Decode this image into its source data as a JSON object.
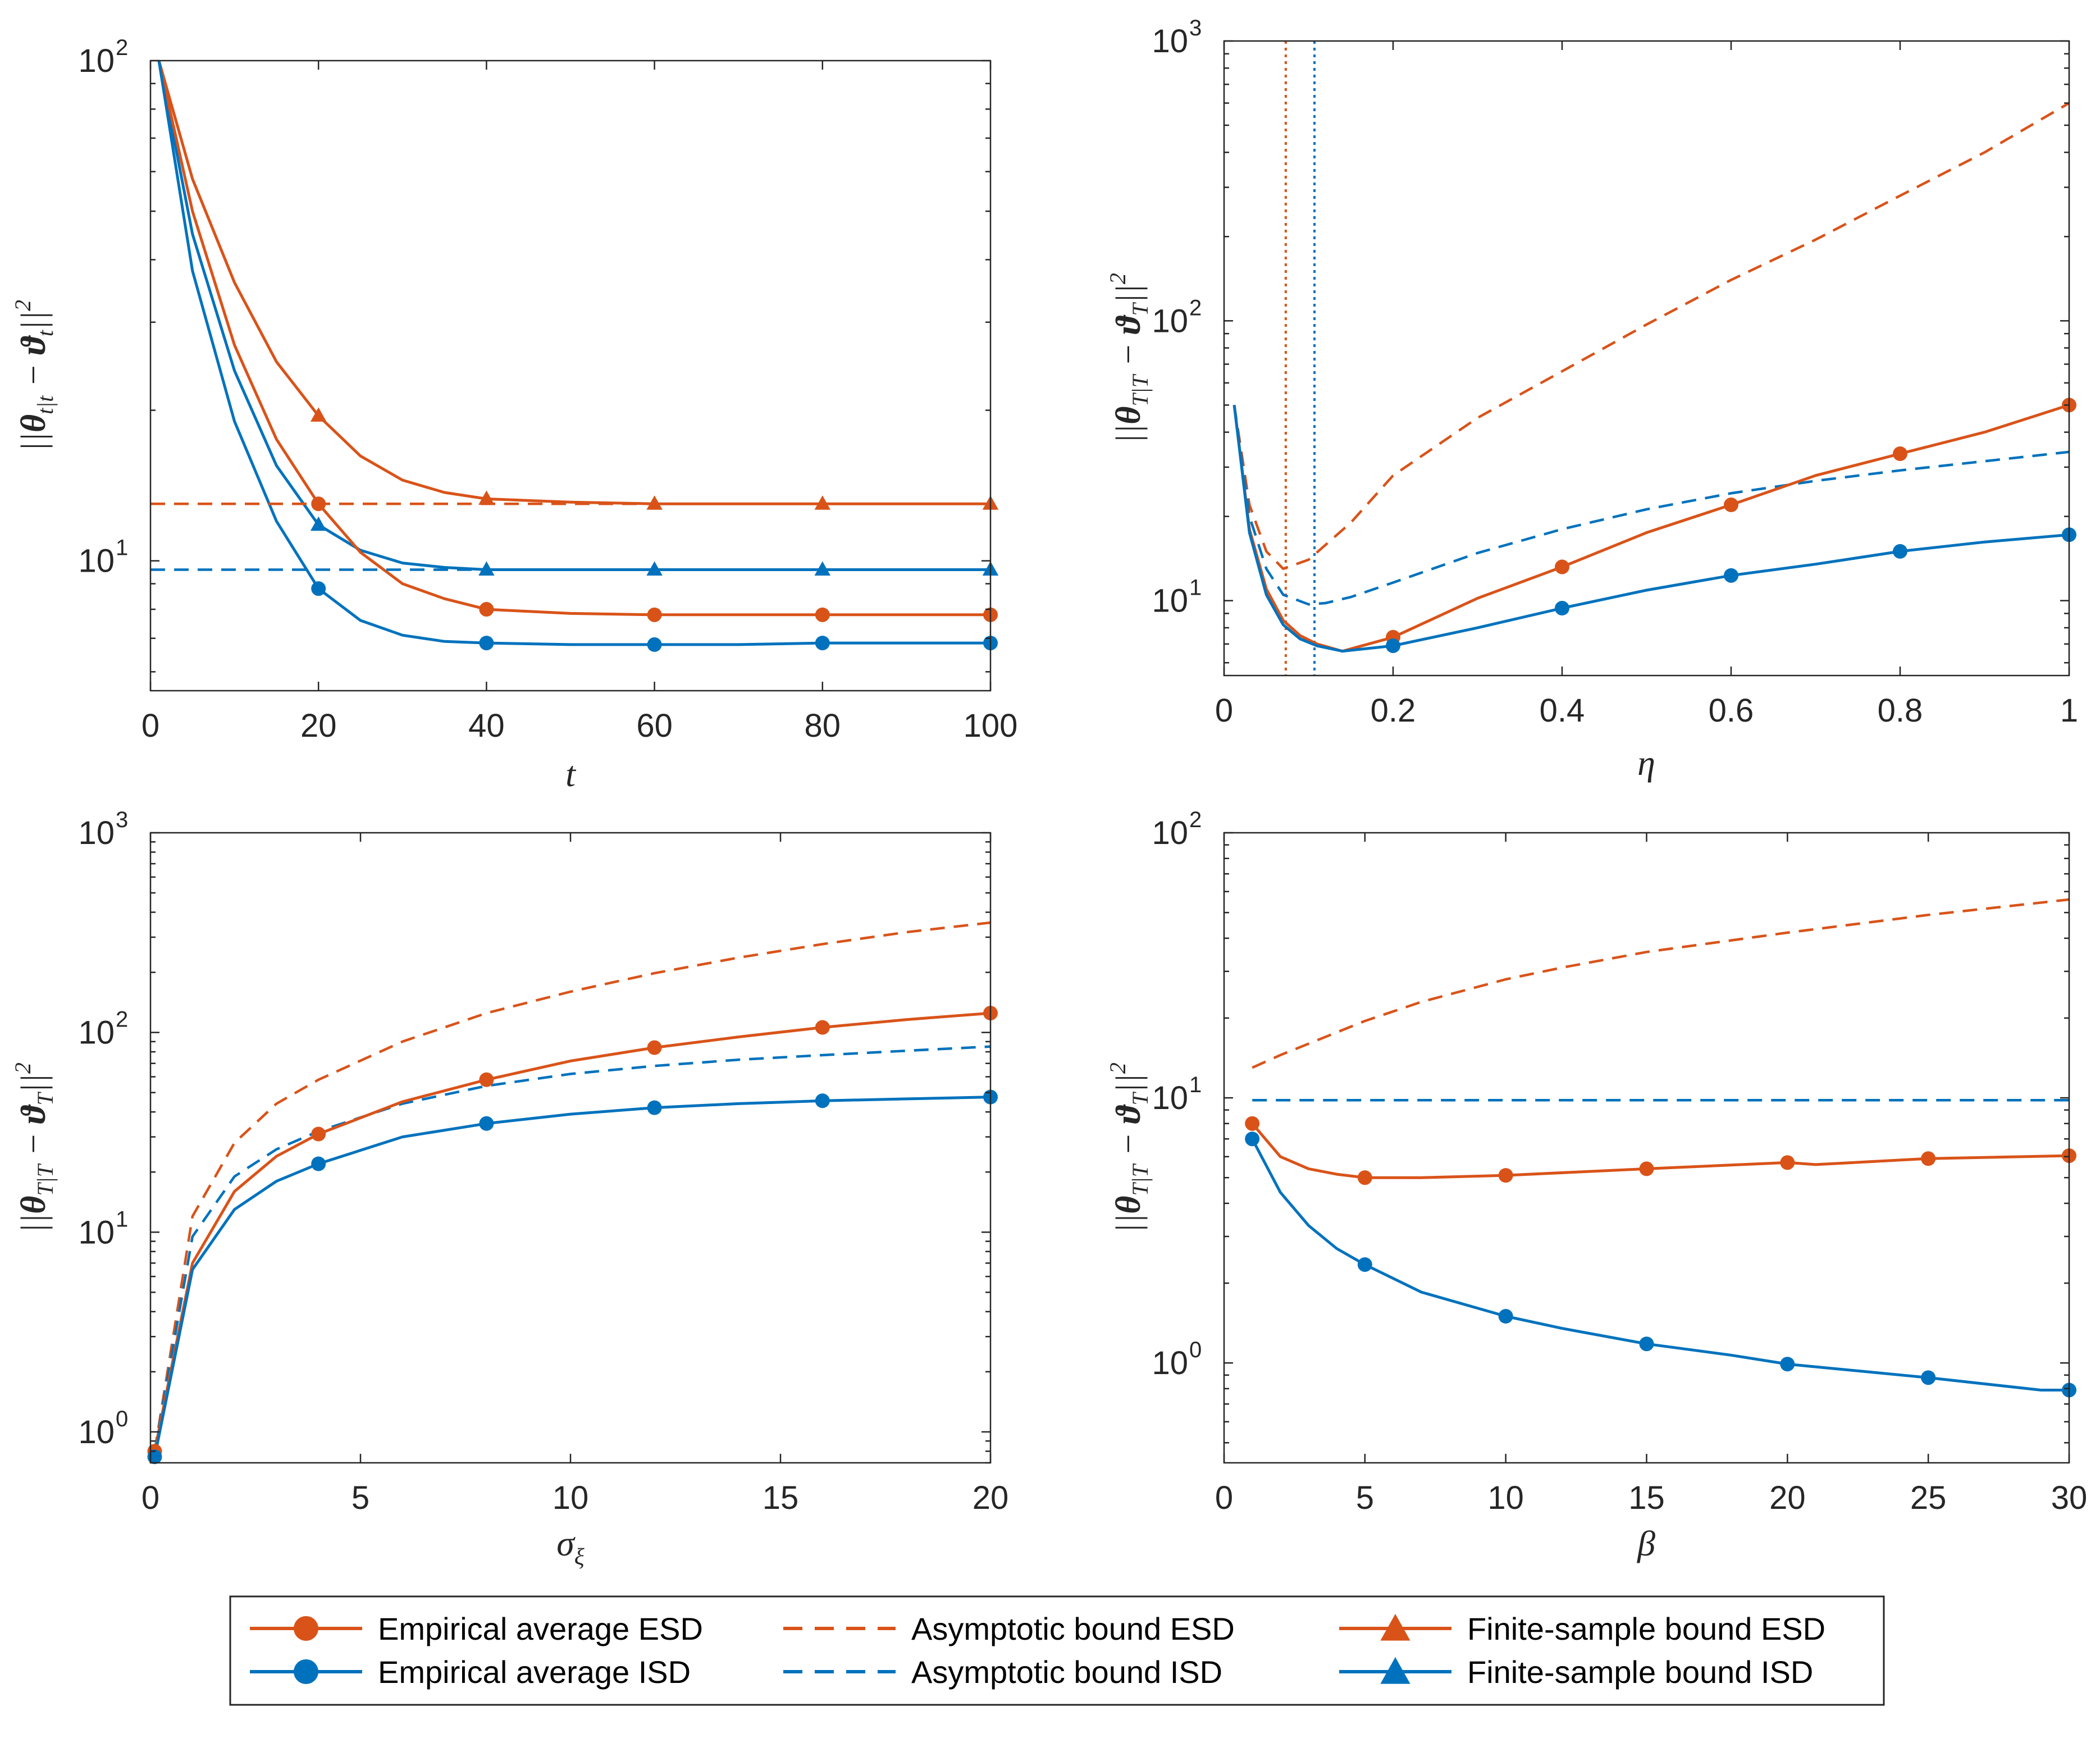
{
  "colors": {
    "esd": "#D95319",
    "isd": "#0072BD",
    "axis": "#262626"
  },
  "legend": {
    "items": [
      {
        "label": "Empirical average ESD",
        "color": "#D95319",
        "style": "solid",
        "marker": "circle"
      },
      {
        "label": "Empirical average ISD",
        "color": "#0072BD",
        "style": "solid",
        "marker": "circle"
      },
      {
        "label": "Asymptotic bound ESD",
        "color": "#D95319",
        "style": "dashed",
        "marker": "none"
      },
      {
        "label": "Asymptotic bound ISD",
        "color": "#0072BD",
        "style": "dashed",
        "marker": "none"
      },
      {
        "label": "Finite-sample bound ESD",
        "color": "#D95319",
        "style": "solid",
        "marker": "triangle"
      },
      {
        "label": "Finite-sample bound ISD",
        "color": "#0072BD",
        "style": "solid",
        "marker": "triangle"
      }
    ]
  },
  "chart_data": [
    {
      "id": "tl",
      "type": "line",
      "yscale": "log",
      "xlabel": "t",
      "ylabel": "||θ_{t|t} − ϑ_t||²",
      "xlim": [
        0,
        100
      ],
      "ylim": [
        5.5,
        100
      ],
      "xticks": [
        {
          "v": 0,
          "t": "0"
        },
        {
          "v": 20,
          "t": "20"
        },
        {
          "v": 40,
          "t": "40"
        },
        {
          "v": 60,
          "t": "60"
        },
        {
          "v": 80,
          "t": "80"
        },
        {
          "v": 100,
          "t": "100"
        }
      ],
      "yticks": [
        {
          "v": 10,
          "b": "10",
          "e": "1"
        },
        {
          "v": 100,
          "b": "10",
          "e": "2"
        }
      ],
      "series": [
        {
          "name": "Finite-sample bound ESD",
          "color": "esd",
          "style": "solid",
          "marker": "triangle",
          "x": [
            1,
            5,
            10,
            15,
            20,
            25,
            30,
            35,
            40,
            50,
            60,
            70,
            80,
            90,
            100
          ],
          "y": [
            100,
            58,
            36,
            25,
            19.5,
            16.2,
            14.5,
            13.7,
            13.3,
            13.1,
            13.0,
            13.0,
            13.0,
            13.0,
            13.0
          ],
          "markers_x": [
            20,
            40,
            60,
            80,
            100
          ]
        },
        {
          "name": "Finite-sample bound ISD",
          "color": "isd",
          "style": "solid",
          "marker": "triangle",
          "x": [
            1,
            5,
            10,
            15,
            20,
            25,
            30,
            35,
            40,
            50,
            60,
            70,
            80,
            90,
            100
          ],
          "y": [
            100,
            45,
            24,
            15.5,
            11.8,
            10.5,
            9.9,
            9.7,
            9.6,
            9.6,
            9.6,
            9.6,
            9.6,
            9.6,
            9.6
          ],
          "markers_x": [
            20,
            40,
            60,
            80,
            100
          ]
        },
        {
          "name": "Empirical average ESD",
          "color": "esd",
          "style": "solid",
          "marker": "circle",
          "x": [
            1,
            5,
            10,
            15,
            20,
            25,
            30,
            35,
            40,
            50,
            60,
            70,
            80,
            90,
            100
          ],
          "y": [
            100,
            50,
            27,
            17.5,
            13.0,
            10.4,
            9.0,
            8.4,
            8.0,
            7.85,
            7.8,
            7.8,
            7.8,
            7.8,
            7.8
          ],
          "markers_x": [
            20,
            40,
            60,
            80,
            100
          ]
        },
        {
          "name": "Empirical average ISD",
          "color": "isd",
          "style": "solid",
          "marker": "circle",
          "x": [
            1,
            5,
            10,
            15,
            20,
            25,
            30,
            35,
            40,
            50,
            60,
            70,
            80,
            90,
            100
          ],
          "y": [
            100,
            38,
            19,
            12,
            8.8,
            7.6,
            7.1,
            6.9,
            6.85,
            6.8,
            6.8,
            6.8,
            6.85,
            6.85,
            6.85
          ],
          "markers_x": [
            20,
            40,
            60,
            80,
            100
          ]
        },
        {
          "name": "Asymptotic bound ESD",
          "color": "esd",
          "style": "dashed",
          "marker": "none",
          "x": [
            0,
            100
          ],
          "y": [
            13.0,
            13.0
          ]
        },
        {
          "name": "Asymptotic bound ISD",
          "color": "isd",
          "style": "dashed",
          "marker": "none",
          "x": [
            0,
            100
          ],
          "y": [
            9.6,
            9.6
          ]
        }
      ]
    },
    {
      "id": "tr",
      "type": "line",
      "yscale": "log",
      "xlabel": "η",
      "ylabel": "||θ_{T|T} − ϑ_T||²",
      "xlim": [
        0,
        1
      ],
      "ylim": [
        5.4,
        1000
      ],
      "xticks": [
        {
          "v": 0,
          "t": "0"
        },
        {
          "v": 0.2,
          "t": "0.2"
        },
        {
          "v": 0.4,
          "t": "0.4"
        },
        {
          "v": 0.6,
          "t": "0.6"
        },
        {
          "v": 0.8,
          "t": "0.8"
        },
        {
          "v": 1,
          "t": "1"
        }
      ],
      "yticks": [
        {
          "v": 10,
          "b": "10",
          "e": "1"
        },
        {
          "v": 100,
          "b": "10",
          "e": "2"
        },
        {
          "v": 1000,
          "b": "10",
          "e": "3"
        }
      ],
      "vlines": [
        {
          "x": 0.073,
          "color": "esd"
        },
        {
          "x": 0.107,
          "color": "isd"
        }
      ],
      "series": [
        {
          "name": "Asymptotic bound ESD",
          "color": "esd",
          "style": "dashed",
          "marker": "none",
          "x": [
            0.012,
            0.03,
            0.05,
            0.07,
            0.1,
            0.15,
            0.2,
            0.3,
            0.4,
            0.5,
            0.6,
            0.7,
            0.8,
            0.9,
            1.0
          ],
          "y": [
            50,
            22,
            15,
            13,
            14,
            19,
            28,
            45,
            66,
            97,
            140,
            195,
            280,
            400,
            600
          ]
        },
        {
          "name": "Asymptotic bound ISD",
          "color": "isd",
          "style": "dashed",
          "marker": "none",
          "x": [
            0.012,
            0.03,
            0.05,
            0.07,
            0.1,
            0.12,
            0.15,
            0.2,
            0.3,
            0.4,
            0.5,
            0.6,
            0.7,
            0.8,
            0.9,
            1.0
          ],
          "y": [
            50,
            20,
            13,
            10.5,
            9.7,
            9.8,
            10.3,
            11.6,
            14.8,
            18.0,
            21.2,
            24.2,
            26.8,
            29.2,
            31.5,
            34
          ]
        },
        {
          "name": "Empirical average ESD",
          "color": "esd",
          "style": "solid",
          "marker": "circle",
          "x": [
            0.012,
            0.03,
            0.05,
            0.07,
            0.09,
            0.11,
            0.14,
            0.2,
            0.3,
            0.4,
            0.5,
            0.6,
            0.7,
            0.8,
            0.9,
            1.0
          ],
          "y": [
            50,
            18,
            11,
            8.5,
            7.5,
            7.0,
            6.6,
            7.4,
            10.2,
            13.2,
            17.5,
            22.0,
            28.0,
            33.5,
            40,
            50
          ],
          "markers_x": [
            0.2,
            0.4,
            0.6,
            0.8,
            1.0
          ]
        },
        {
          "name": "Empirical average ISD",
          "color": "isd",
          "style": "solid",
          "marker": "circle",
          "x": [
            0.012,
            0.03,
            0.05,
            0.07,
            0.09,
            0.11,
            0.14,
            0.2,
            0.3,
            0.4,
            0.5,
            0.6,
            0.7,
            0.8,
            0.9,
            1.0
          ],
          "y": [
            50,
            17.5,
            10.5,
            8.2,
            7.3,
            6.9,
            6.6,
            6.9,
            8.0,
            9.4,
            10.9,
            12.3,
            13.5,
            15.0,
            16.2,
            17.2
          ],
          "markers_x": [
            0.2,
            0.4,
            0.6,
            0.8,
            1.0
          ]
        }
      ]
    },
    {
      "id": "bl",
      "type": "line",
      "yscale": "log",
      "xlabel": "σ_ξ",
      "ylabel": "||θ_{T|T} − ϑ_T||²",
      "xlim": [
        0,
        20
      ],
      "ylim": [
        0.7,
        1000
      ],
      "xticks": [
        {
          "v": 0,
          "t": "0"
        },
        {
          "v": 5,
          "t": "5"
        },
        {
          "v": 10,
          "t": "10"
        },
        {
          "v": 15,
          "t": "15"
        },
        {
          "v": 20,
          "t": "20"
        }
      ],
      "yticks": [
        {
          "v": 1,
          "b": "10",
          "e": "0"
        },
        {
          "v": 10,
          "b": "10",
          "e": "1"
        },
        {
          "v": 100,
          "b": "10",
          "e": "2"
        },
        {
          "v": 1000,
          "b": "10",
          "e": "3"
        }
      ],
      "series": [
        {
          "name": "Asymptotic bound ESD",
          "color": "esd",
          "style": "dashed",
          "marker": "none",
          "x": [
            0.1,
            1,
            2,
            3,
            4,
            6,
            8,
            10,
            12,
            14,
            16,
            18,
            20
          ],
          "y": [
            0.8,
            12,
            28,
            44,
            58,
            90,
            125,
            160,
            198,
            237,
            277,
            318,
            355
          ]
        },
        {
          "name": "Asymptotic bound ISD",
          "color": "isd",
          "style": "dashed",
          "marker": "none",
          "x": [
            0.1,
            1,
            2,
            3,
            4,
            6,
            8,
            10,
            12,
            14,
            16,
            18,
            20
          ],
          "y": [
            0.8,
            9.5,
            19,
            26,
            32,
            44,
            54,
            62,
            68,
            73,
            77,
            81,
            85
          ]
        },
        {
          "name": "Empirical average ESD",
          "color": "esd",
          "style": "solid",
          "marker": "circle",
          "x": [
            0.1,
            1,
            2,
            3,
            4,
            6,
            8,
            10,
            12,
            14,
            16,
            18,
            20
          ],
          "y": [
            0.8,
            7,
            16,
            24,
            31,
            45,
            58,
            72,
            84,
            95,
            106,
            116,
            125
          ],
          "markers_x": [
            0.1,
            4,
            8,
            12,
            16,
            20
          ]
        },
        {
          "name": "Empirical average ISD",
          "color": "isd",
          "style": "solid",
          "marker": "circle",
          "x": [
            0.1,
            1,
            2,
            3,
            4,
            6,
            8,
            10,
            12,
            14,
            16,
            18,
            20
          ],
          "y": [
            0.75,
            6.5,
            13,
            18,
            22,
            30,
            35,
            39,
            42,
            44,
            45.5,
            46.5,
            47.5
          ],
          "markers_x": [
            0.1,
            4,
            8,
            12,
            16,
            20
          ]
        }
      ]
    },
    {
      "id": "br",
      "type": "line",
      "yscale": "log",
      "xlabel": "β",
      "ylabel": "||θ_{T|T} − ϑ_T||²",
      "xlim": [
        0,
        30
      ],
      "ylim": [
        0.42,
        100
      ],
      "xticks": [
        {
          "v": 0,
          "t": "0"
        },
        {
          "v": 5,
          "t": "5"
        },
        {
          "v": 10,
          "t": "10"
        },
        {
          "v": 15,
          "t": "15"
        },
        {
          "v": 20,
          "t": "20"
        },
        {
          "v": 25,
          "t": "25"
        },
        {
          "v": 30,
          "t": "30"
        }
      ],
      "yticks": [
        {
          "v": 1,
          "b": "10",
          "e": "0"
        },
        {
          "v": 10,
          "b": "10",
          "e": "1"
        },
        {
          "v": 100,
          "b": "10",
          "e": "2"
        }
      ],
      "series": [
        {
          "name": "Asymptotic bound ESD",
          "color": "esd",
          "style": "dashed",
          "marker": "none",
          "x": [
            1,
            2,
            3,
            5,
            7,
            10,
            12,
            15,
            20,
            25,
            30
          ],
          "y": [
            13,
            14.5,
            16,
            19.5,
            23,
            28,
            31,
            35.5,
            42,
            49,
            56
          ]
        },
        {
          "name": "Asymptotic bound ISD",
          "color": "isd",
          "style": "dashed",
          "marker": "none",
          "x": [
            1,
            30
          ],
          "y": [
            9.8,
            9.8
          ]
        },
        {
          "name": "Empirical average ESD",
          "color": "esd",
          "style": "solid",
          "marker": "circle",
          "x": [
            1,
            2,
            3,
            4,
            5,
            7,
            10,
            15,
            20,
            21,
            25,
            30
          ],
          "y": [
            8,
            6,
            5.4,
            5.15,
            5.0,
            5.0,
            5.1,
            5.4,
            5.7,
            5.6,
            5.9,
            6.05
          ],
          "markers_x": [
            1,
            5,
            10,
            15,
            20,
            25,
            30
          ]
        },
        {
          "name": "Empirical average ISD",
          "color": "isd",
          "style": "solid",
          "marker": "circle",
          "x": [
            1,
            2,
            3,
            4,
            5,
            7,
            10,
            12,
            15,
            18,
            20,
            25,
            29,
            30
          ],
          "y": [
            7,
            4.4,
            3.3,
            2.7,
            2.35,
            1.85,
            1.5,
            1.35,
            1.18,
            1.07,
            0.99,
            0.88,
            0.79,
            0.79
          ],
          "markers_x": [
            1,
            5,
            10,
            15,
            20,
            25,
            30
          ]
        }
      ]
    }
  ]
}
